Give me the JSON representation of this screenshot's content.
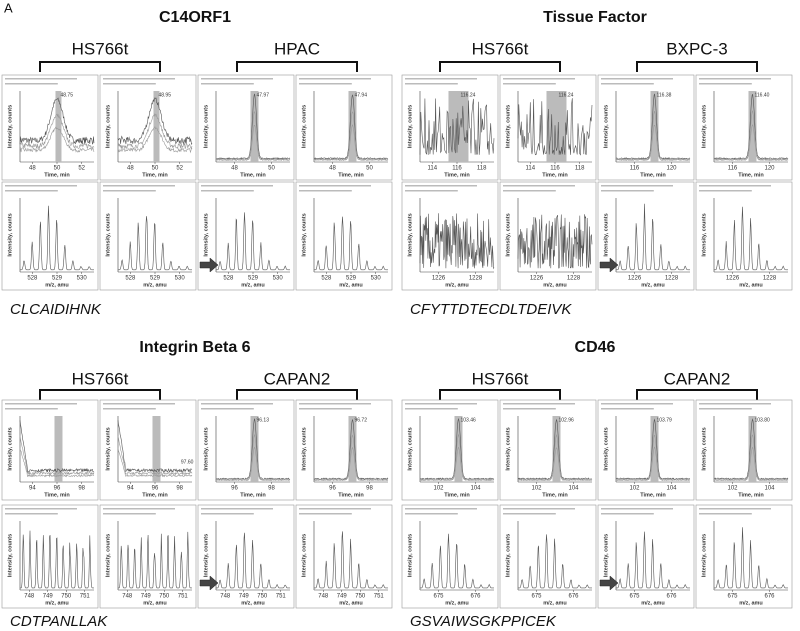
{
  "panel_label": "A",
  "axis_labels": {
    "time": "Time, min",
    "mz": "m/z, amu",
    "intensity": "Intensity, counts"
  },
  "quadrants": [
    {
      "title": "C14ORF1",
      "groups": [
        "HS766t",
        "HPAC"
      ],
      "peptide": "CLCAIDIHNK",
      "columns": [
        {
          "time_ticks": [
            "48",
            "50",
            "52"
          ],
          "mz_ticks": [
            "528",
            "529",
            "530"
          ],
          "peak": "48.75"
        },
        {
          "time_ticks": [
            "48",
            "50",
            "52"
          ],
          "mz_ticks": [
            "528",
            "529",
            "530"
          ],
          "peak": "48.95"
        },
        {
          "time_ticks": [
            "48",
            "50"
          ],
          "mz_ticks": [
            "528",
            "529",
            "530"
          ],
          "peak": "47.97"
        },
        {
          "time_ticks": [
            "48",
            "50"
          ],
          "mz_ticks": [
            "528",
            "529",
            "530"
          ],
          "peak": "47.94"
        }
      ]
    },
    {
      "title": "Tissue Factor",
      "groups": [
        "HS766t",
        "BXPC-3"
      ],
      "peptide": "CFYTTDTECDLTDEIVK",
      "columns": [
        {
          "time_ticks": [
            "114",
            "116",
            "118"
          ],
          "mz_ticks": [
            "1226",
            "1228"
          ],
          "peak": "116.24"
        },
        {
          "time_ticks": [
            "114",
            "116",
            "118"
          ],
          "mz_ticks": [
            "1226",
            "1228"
          ],
          "peak": "116.24"
        },
        {
          "time_ticks": [
            "116",
            "120"
          ],
          "mz_ticks": [
            "1226",
            "1228"
          ],
          "peak": "116.38"
        },
        {
          "time_ticks": [
            "116",
            "120"
          ],
          "mz_ticks": [
            "1226",
            "1228"
          ],
          "peak": "116.40"
        }
      ]
    },
    {
      "title": "Integrin Beta 6",
      "groups": [
        "HS766t",
        "CAPAN2"
      ],
      "peptide": "CDTPANLLAK",
      "columns": [
        {
          "time_ticks": [
            "94",
            "96",
            "98"
          ],
          "mz_ticks": [
            "748",
            "749",
            "750",
            "751"
          ]
        },
        {
          "time_ticks": [
            "94",
            "96",
            "98"
          ],
          "mz_ticks": [
            "748",
            "749",
            "750",
            "751"
          ],
          "peak": "97.60"
        },
        {
          "time_ticks": [
            "96",
            "98"
          ],
          "mz_ticks": [
            "748",
            "749",
            "750",
            "751"
          ],
          "peak": "96.13"
        },
        {
          "time_ticks": [
            "96",
            "98"
          ],
          "mz_ticks": [
            "748",
            "749",
            "750",
            "751"
          ],
          "peak": "96.72"
        }
      ]
    },
    {
      "title": "CD46",
      "groups": [
        "HS766t",
        "CAPAN2"
      ],
      "peptide": "GSVAIWSGKPPICEK",
      "columns": [
        {
          "time_ticks": [
            "102",
            "104"
          ],
          "mz_ticks": [
            "675",
            "676"
          ],
          "peak": "103.46"
        },
        {
          "time_ticks": [
            "102",
            "104"
          ],
          "mz_ticks": [
            "675",
            "676"
          ],
          "peak": "102.96"
        },
        {
          "time_ticks": [
            "102",
            "104"
          ],
          "mz_ticks": [
            "675",
            "676"
          ],
          "peak": "103.79"
        },
        {
          "time_ticks": [
            "102",
            "104"
          ],
          "mz_ticks": [
            "675",
            "676"
          ],
          "peak": "103.80"
        }
      ]
    }
  ]
}
